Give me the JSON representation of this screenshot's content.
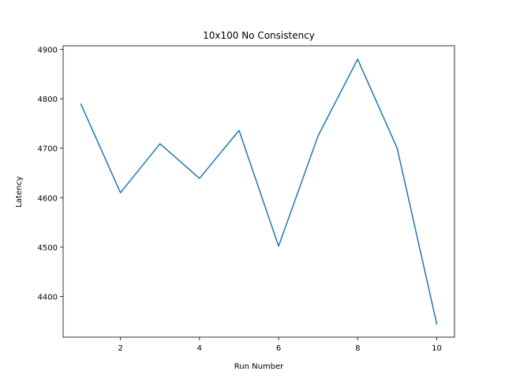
{
  "chart_data": {
    "type": "line",
    "title": "10x100 No Consistency",
    "xlabel": "Run Number",
    "ylabel": "Latency",
    "xlim": [
      0.55,
      10.45
    ],
    "ylim": [
      4318,
      4907
    ],
    "xticks": [
      2,
      4,
      6,
      8,
      10
    ],
    "yticks": [
      4400,
      4500,
      4600,
      4700,
      4800,
      4900
    ],
    "grid": false,
    "series": [
      {
        "color": "#1f77b4",
        "x": [
          1,
          2,
          3,
          4,
          5,
          6,
          7,
          8,
          9,
          10
        ],
        "y": [
          4789,
          4610,
          4709,
          4639,
          4736,
          4502,
          4725,
          4880,
          4700,
          4345
        ]
      }
    ]
  }
}
